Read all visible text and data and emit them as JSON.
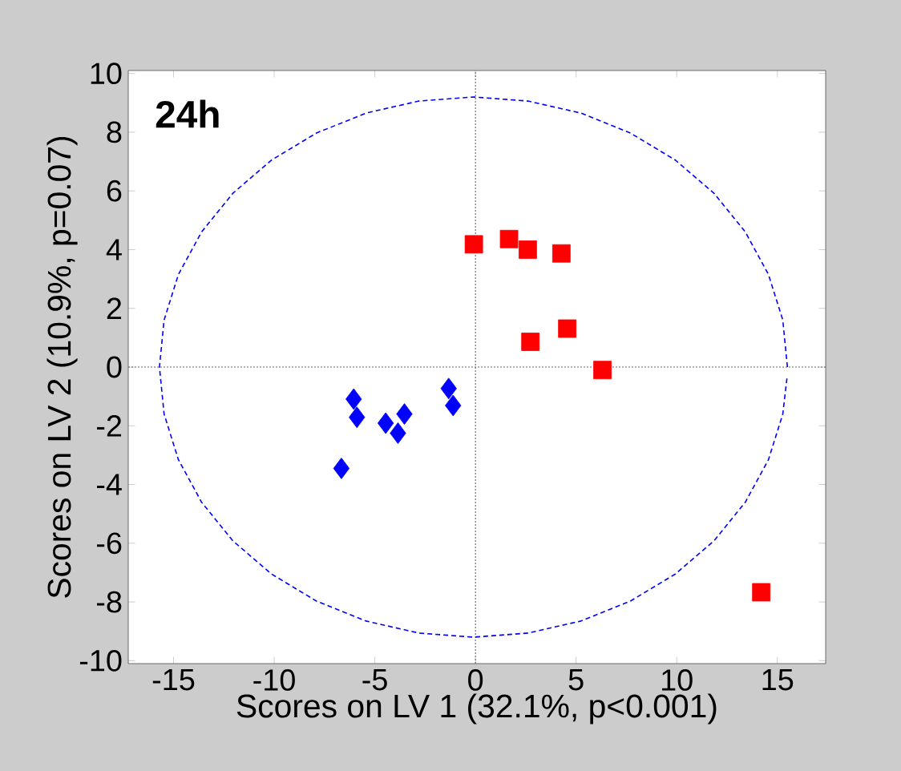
{
  "chart_data": {
    "type": "scatter",
    "xlabel": "Scores on LV 1 (32.1%, p<0.001)",
    "ylabel": "Scores on LV 2 (10.9%, p=0.07)",
    "annotations": [
      "24h"
    ],
    "xlim": [
      -17.25,
      17.4
    ],
    "ylim": [
      -10.1,
      10.1
    ],
    "xticks": [
      -15,
      -10,
      -5,
      0,
      5,
      10,
      15
    ],
    "yticks": [
      -10,
      -8,
      -6,
      -4,
      -2,
      0,
      2,
      4,
      6,
      8,
      10
    ],
    "grid": false,
    "legend": false,
    "ref_lines": [
      {
        "axis": "x",
        "value": 0,
        "color": "#555555",
        "line_style": "dotted"
      },
      {
        "axis": "y",
        "value": 0,
        "color": "#666666",
        "line_style": "dotted"
      }
    ],
    "series": [
      {
        "color": "#ff0000",
        "marker": "square",
        "x": [
          -0.08,
          1.67,
          2.6,
          4.27,
          2.73,
          4.56,
          6.31,
          14.2
        ],
        "values": [
          4.18,
          4.36,
          4.0,
          3.87,
          0.86,
          1.31,
          -0.1,
          -7.67
        ]
      },
      {
        "color": "#0000ff",
        "marker": "diamond",
        "x": [
          -6.05,
          -5.89,
          -6.66,
          -4.46,
          -3.53,
          -3.85,
          -1.33,
          -1.11
        ],
        "values": [
          -1.09,
          -1.71,
          -3.45,
          -1.91,
          -1.6,
          -2.25,
          -0.73,
          -1.31
        ]
      },
      {
        "type": "line",
        "color": "#0000ff",
        "marker": "none",
        "line_style": "dashed",
        "x": [
          15.5,
          15.27,
          14.56,
          13.41,
          11.85,
          9.93,
          7.7,
          5.24,
          2.61,
          -0.1,
          -2.81,
          -5.44,
          -7.9,
          -10.13,
          -12.05,
          -13.61,
          -14.76,
          -15.47,
          -15.7,
          -15.47,
          -14.76,
          -13.61,
          -12.05,
          -10.13,
          -7.9,
          -5.44,
          -2.81,
          -0.1,
          2.61,
          5.24,
          7.7,
          9.93,
          11.85,
          13.41,
          14.56,
          15.27,
          15.49
        ],
        "values": [
          0,
          1.6,
          3.15,
          4.6,
          5.92,
          7.05,
          7.97,
          8.65,
          9.06,
          9.2,
          9.06,
          8.65,
          7.97,
          7.05,
          5.92,
          4.6,
          3.15,
          1.6,
          0,
          -1.6,
          -3.15,
          -4.6,
          -5.92,
          -7.05,
          -7.97,
          -8.65,
          -9.06,
          -9.2,
          -9.06,
          -8.65,
          -7.97,
          -7.05,
          -5.92,
          -4.6,
          -3.15,
          -1.6,
          -0.3
        ]
      }
    ]
  }
}
